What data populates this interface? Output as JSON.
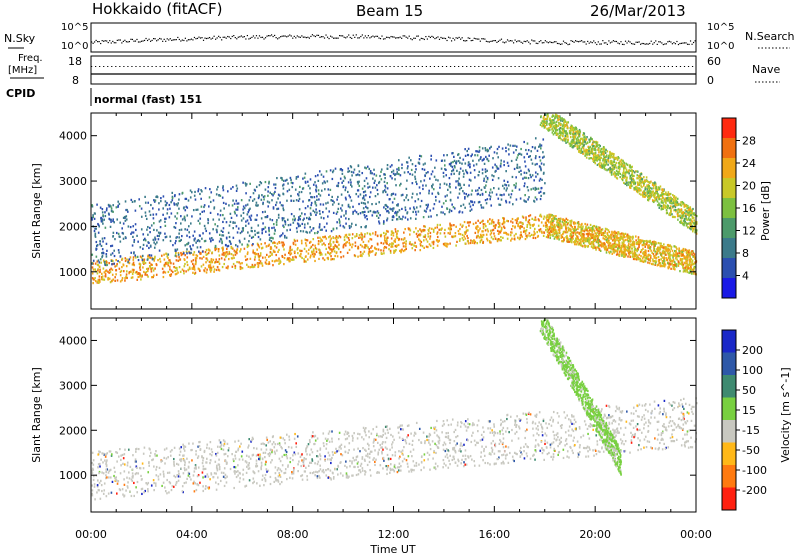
{
  "header": {
    "station": "Hokkaido (fitACF)",
    "beam": "Beam 15",
    "date": "26/Mar/2013"
  },
  "top_panels": {
    "nsky_label": "N.Sky",
    "nsearch_label": "N.Search",
    "nsky_ticks": [
      "10^5",
      "10^0"
    ],
    "nsearch_ticks": [
      "10^5",
      "10^0"
    ],
    "freq_label_1": "Freq.",
    "freq_label_2": "[MHz]",
    "freq_ticks": [
      "18",
      "8"
    ],
    "nave_label": "Nave",
    "nave_ticks": [
      "60",
      "0"
    ],
    "cpid_label": "CPID",
    "cpid_value": "normal (fast) 151"
  },
  "chart_data": [
    {
      "type": "heatmap",
      "quantity": "Power",
      "xlabel": "",
      "ylabel": "Slant Range [km]",
      "x_range": [
        "00:00",
        "00:00"
      ],
      "ylim": [
        180,
        4500
      ],
      "y_ticks": [
        "1000",
        "2000",
        "3000",
        "4000"
      ],
      "colorbar_label": "Power [dB]",
      "colorbar_ticks": [
        "4",
        "8",
        "12",
        "16",
        "20",
        "24",
        "28"
      ],
      "colorbar_range": [
        0,
        30
      ],
      "colors": [
        "#1a1ae6",
        "#2b4fb0",
        "#3b7a8a",
        "#4c9a6a",
        "#7cc040",
        "#c8c828",
        "#f0a818",
        "#f07010",
        "#ff2a10"
      ],
      "features": [
        {
          "name": "main E/F echo band",
          "t_start_h": 0,
          "t_end_h": 18,
          "range_start_km": 1000,
          "range_end_km": 2050,
          "power_db": 28
        },
        {
          "name": "post-sunset descending band",
          "t_start_h": 18,
          "t_end_h": 24,
          "range_start_km": 2050,
          "range_end_km": 1200,
          "power_db": 26
        },
        {
          "name": "upper scatter",
          "t_start_h": 0,
          "t_end_h": 18,
          "range_start_km": 1800,
          "range_end_km": 3300,
          "power_db": 10
        },
        {
          "name": "high-range echo",
          "t_start_h": 17.8,
          "t_end_h": 24,
          "range_start_km": 4500,
          "range_end_km": 2100,
          "power_db": 22
        }
      ]
    },
    {
      "type": "heatmap",
      "quantity": "Velocity",
      "xlabel": "Time UT",
      "ylabel": "Slant Range [km]",
      "x_ticks": [
        "00:00",
        "04:00",
        "08:00",
        "12:00",
        "16:00",
        "20:00",
        "00:00"
      ],
      "ylim": [
        180,
        4500
      ],
      "y_ticks": [
        "1000",
        "2000",
        "3000",
        "4000"
      ],
      "colorbar_label": "Velocity [m s^-1]",
      "colorbar_ticks": [
        "200",
        "100",
        "50",
        "15",
        "-15",
        "-50",
        "-100",
        "-200"
      ],
      "colors": [
        "#1a28c8",
        "#2e58a8",
        "#3e8a70",
        "#78d040",
        "#c8c8c0",
        "#ffb818",
        "#ff7a10",
        "#ff2010"
      ],
      "features": [
        {
          "name": "ground scatter band",
          "t_start_h": 0,
          "t_end_h": 24,
          "range_start_km": 1000,
          "range_end_km": 2200,
          "velocity_ms": 0
        },
        {
          "name": "ionospheric echo",
          "t_start_h": 17.8,
          "t_end_h": 21,
          "range_start_km": 4500,
          "range_end_km": 1300,
          "velocity_ms": 30
        }
      ]
    }
  ]
}
